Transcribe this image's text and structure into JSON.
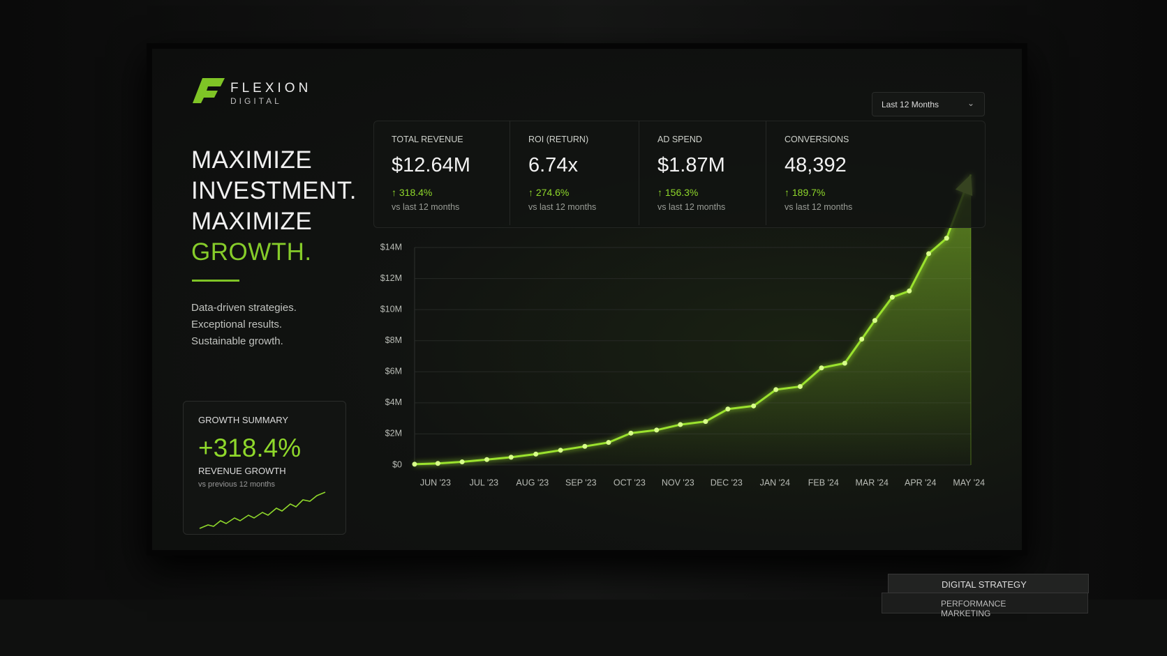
{
  "brand": {
    "name": "FLEXION",
    "sub": "DIGITAL"
  },
  "headline": {
    "lines": [
      "MAXIMIZE",
      "INVESTMENT.",
      "MAXIMIZE"
    ],
    "accent": "GROWTH."
  },
  "tagline": [
    "Data-driven strategies.",
    "Exceptional results.",
    "Sustainable growth."
  ],
  "dropdown": "Last 12 Months",
  "kpis": [
    {
      "label": "TOTAL REVENUE",
      "value": "$12.64M",
      "change": "318.4%",
      "note": "vs last 12 months"
    },
    {
      "label": "ROI (RETURN)",
      "value": "6.74x",
      "change": "274.6%",
      "note": "vs last 12 months"
    },
    {
      "label": "AD SPEND",
      "value": "$1.87M",
      "change": "156.3%",
      "note": "vs last 12 months"
    },
    {
      "label": "CONVERSIONS",
      "value": "48,392",
      "change": "189.7%",
      "note": "vs last 12 months"
    }
  ],
  "summary": {
    "title": "GROWTH SUMMARY",
    "value": "+318.4%",
    "label": "REVENUE GROWTH",
    "note": "vs previous 12 months"
  },
  "books": [
    "DIGITAL STRATEGY",
    "PERFORMANCE MARKETING"
  ],
  "chart_data": {
    "type": "line",
    "color": "#9be22d",
    "x": [
      -0.43,
      0.05,
      0.55,
      1.06,
      1.56,
      2.07,
      2.58,
      3.08,
      3.57,
      4.03,
      4.56,
      5.05,
      5.57,
      6.03,
      6.56,
      7.02,
      7.52,
      7.96,
      8.44,
      8.79,
      9.06,
      9.42,
      9.77,
      10.17,
      10.54,
      11.04
    ],
    "series": [
      {
        "name": "Revenue",
        "color": "#9be22d",
        "values": [
          0.05,
          0.1,
          0.2,
          0.35,
          0.5,
          0.7,
          0.95,
          1.2,
          1.45,
          2.05,
          2.25,
          2.6,
          2.8,
          3.6,
          3.8,
          4.85,
          5.05,
          6.25,
          6.55,
          8.1,
          9.3,
          10.8,
          11.2,
          13.6,
          14.6,
          18.7
        ]
      }
    ],
    "xlim": [
      -0.43,
      11.04
    ],
    "xticks": [
      {
        "value": 0,
        "label": "JUN '23"
      },
      {
        "value": 1,
        "label": "JUL '23"
      },
      {
        "value": 2,
        "label": "AUG '23"
      },
      {
        "value": 3,
        "label": "SEP '23"
      },
      {
        "value": 4,
        "label": "OCT '23"
      },
      {
        "value": 5,
        "label": "NOV '23"
      },
      {
        "value": 6,
        "label": "DEC '23"
      },
      {
        "value": 7,
        "label": "JAN '24"
      },
      {
        "value": 8,
        "label": "FEB '24"
      },
      {
        "value": 9,
        "label": "MAR '24"
      },
      {
        "value": 10,
        "label": "APR '24"
      },
      {
        "value": 11,
        "label": "MAY '24"
      }
    ],
    "ylim": [
      0,
      14
    ],
    "yticks": [
      {
        "value": 0,
        "label": "$0"
      },
      {
        "value": 2,
        "label": "$2M"
      },
      {
        "value": 4,
        "label": "$4M"
      },
      {
        "value": 6,
        "label": "$6M"
      },
      {
        "value": 8,
        "label": "$8M"
      },
      {
        "value": 10,
        "label": "$10M"
      },
      {
        "value": 12,
        "label": "$12M"
      },
      {
        "value": 14,
        "label": "$14M"
      }
    ],
    "grid": true
  }
}
